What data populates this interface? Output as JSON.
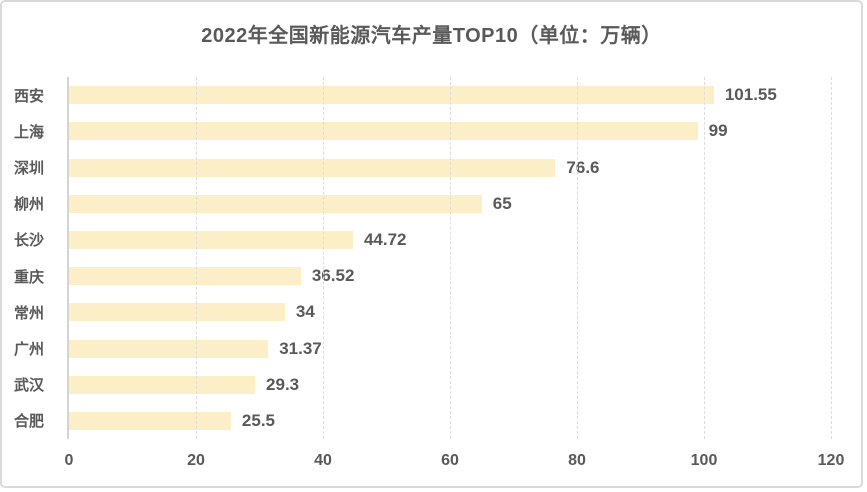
{
  "chart": {
    "title": "2022年全国新能源汽车产量TOP10（单位：万辆）"
  },
  "chart_data": {
    "type": "bar",
    "orientation": "horizontal",
    "title": "2022年全国新能源汽车产量TOP10（单位：万辆）",
    "xlabel": "",
    "ylabel": "",
    "categories": [
      "西安",
      "上海",
      "深圳",
      "柳州",
      "长沙",
      "重庆",
      "常州",
      "广州",
      "武汉",
      "合肥"
    ],
    "values": [
      101.55,
      99,
      76.6,
      65,
      44.72,
      36.52,
      34,
      31.37,
      29.3,
      25.5
    ],
    "value_labels": [
      "101.55",
      "99",
      "76.6",
      "65",
      "44.72",
      "36.52",
      "34",
      "31.37",
      "29.3",
      "25.5"
    ],
    "xlim": [
      0,
      120
    ],
    "x_ticks": [
      0,
      20,
      40,
      60,
      80,
      100,
      120
    ],
    "grid": "vertical-dashed",
    "legend": "none",
    "colors": {
      "bar_fill": "#fcefc8",
      "text": "#595959",
      "axis_line": "#d4d4d4",
      "gridline": "#dddddd",
      "card_border": "#d9d9d9"
    }
  }
}
